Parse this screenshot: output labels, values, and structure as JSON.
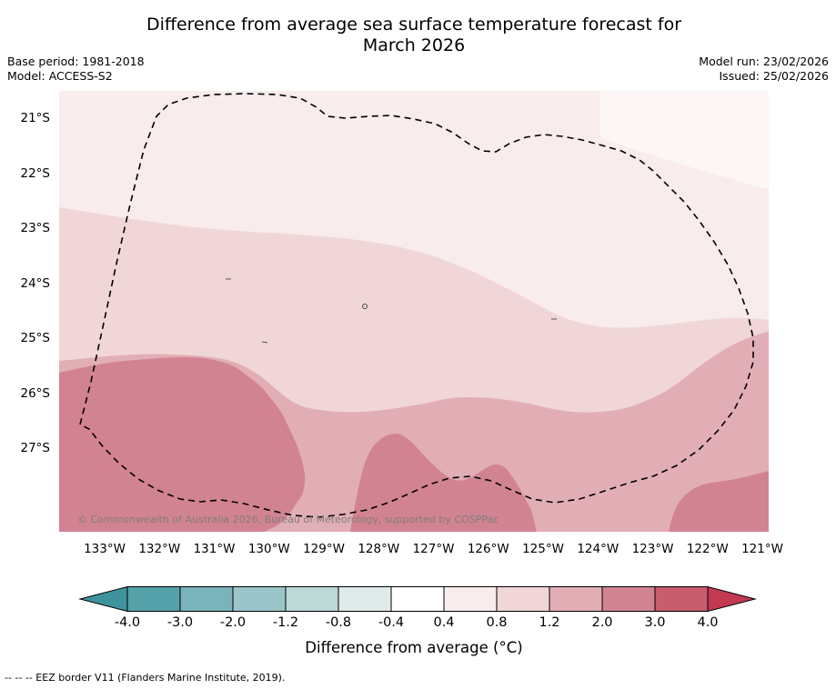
{
  "title": {
    "line1": "Difference from average sea surface temperature forecast for",
    "line2": "March 2026"
  },
  "meta": {
    "base_period": "Base period: 1981-2018",
    "model": "Model: ACCESS-S2",
    "model_run": "Model run: 23/02/2026",
    "issued": "Issued: 25/02/2026"
  },
  "map": {
    "lat_labels": [
      "21°S",
      "22°S",
      "23°S",
      "24°S",
      "25°S",
      "26°S",
      "27°S"
    ],
    "lon_labels": [
      "133°W",
      "132°W",
      "131°W",
      "130°W",
      "129°W",
      "128°W",
      "127°W",
      "126°W",
      "125°W",
      "124°W",
      "123°W",
      "122°W",
      "121°W"
    ],
    "copyright": "© Commonwealth of Australia 2026, Bureau of Meteorology, supported by COSPPac"
  },
  "colors": {
    "band_04_08": "#f8ecec",
    "band_04_08_light": "#fdf6f6",
    "band_08_12": "#f0d6d7",
    "band_12_20": "#e2aeb5",
    "band_20_30": "#d28391",
    "eez_border": "#000000"
  },
  "colorbar": {
    "tick_labels": [
      "-4.0",
      "-3.0",
      "-2.0",
      "-1.2",
      "-0.8",
      "-0.4",
      "0.4",
      "0.8",
      "1.2",
      "2.0",
      "3.0",
      "4.0"
    ],
    "label": "Difference from average (°C)",
    "left_arrow_color": "#3f939c",
    "right_arrow_color": "#c23a52",
    "segment_colors": [
      "#55a2aa",
      "#79b4ba",
      "#9bc6c9",
      "#bed8d8",
      "#dfeaea",
      "#ffffff",
      "#f8ecec",
      "#f0d6d7",
      "#e2aeb5",
      "#d28391",
      "#c75d6f"
    ]
  },
  "footnote": "-- -- -- EEZ border V11 (Flanders Marine Institute, 2019).",
  "chart_data": {
    "type": "heatmap",
    "title": "Difference from average sea surface temperature forecast for March 2026",
    "subtitle_meta": [
      "Base period: 1981-2018",
      "Model: ACCESS-S2",
      "Model run: 23/02/2026",
      "Issued: 25/02/2026"
    ],
    "x_ticks": [
      "133°W",
      "132°W",
      "131°W",
      "130°W",
      "129°W",
      "128°W",
      "127°W",
      "126°W",
      "125°W",
      "124°W",
      "123°W",
      "122°W",
      "121°W"
    ],
    "y_ticks": [
      "21°S",
      "22°S",
      "23°S",
      "24°S",
      "25°S",
      "26°S",
      "27°S"
    ],
    "colorbar_levels": [
      -4.0,
      -3.0,
      -2.0,
      -1.2,
      -0.8,
      -0.4,
      0.4,
      0.8,
      1.2,
      2.0,
      3.0,
      4.0
    ],
    "colorbar_label": "Difference from average (°C)",
    "bands": [
      {
        "value_range_degC": [
          0.4,
          0.8
        ],
        "region": "northern portion of map, from ~23°S in the west sloping down to ~25°S in the east, plus far northeast corner"
      },
      {
        "value_range_degC": [
          0.8,
          1.2
        ],
        "region": "central band between roughly 23°S and 25.5°S, pinching thin near the eastern edge"
      },
      {
        "value_range_degC": [
          1.2,
          2.0
        ],
        "region": "southern portion of map, roughly south of 25.5°S"
      },
      {
        "value_range_degC": [
          2.0,
          3.0
        ],
        "region": "patches in the southwest (134-131°W south of ~25.4°S), south-central (128.5-126.5°W near 27-28°S) and southeast corner (122-121°W south of ~28°S)"
      }
    ],
    "overlay": "Dashed EEZ border V11 loop spanning roughly 133.5°W-121.3°W and 20.6°S-28.4°S",
    "legend_position": "horizontal colorbar below map with arrow extensions on both ends"
  }
}
